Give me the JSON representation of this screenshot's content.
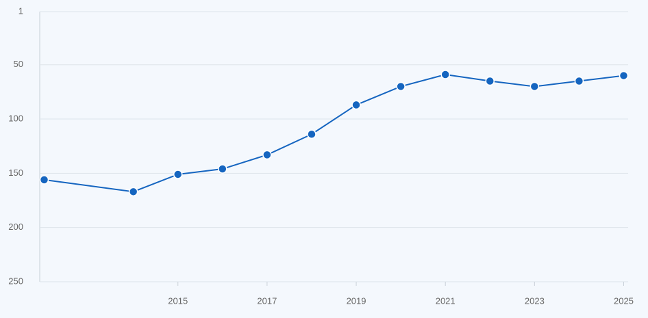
{
  "chart_data": {
    "type": "line",
    "x": [
      2012,
      2014,
      2015,
      2016,
      2017,
      2018,
      2019,
      2020,
      2021,
      2022,
      2023,
      2024,
      2025
    ],
    "series": [
      {
        "color": "#1565c0",
        "values": [
          156,
          167,
          151,
          146,
          133,
          114,
          87,
          70,
          59,
          65,
          70,
          65,
          60
        ]
      }
    ],
    "xlim": [
      2011.9,
      2025.1
    ],
    "xticks": [
      2015,
      2017,
      2019,
      2021,
      2023,
      2025
    ],
    "ylim": [
      1,
      250
    ],
    "yticks": [
      1,
      50,
      100,
      150,
      200,
      250
    ],
    "y_inverted": true,
    "grid": true
  }
}
